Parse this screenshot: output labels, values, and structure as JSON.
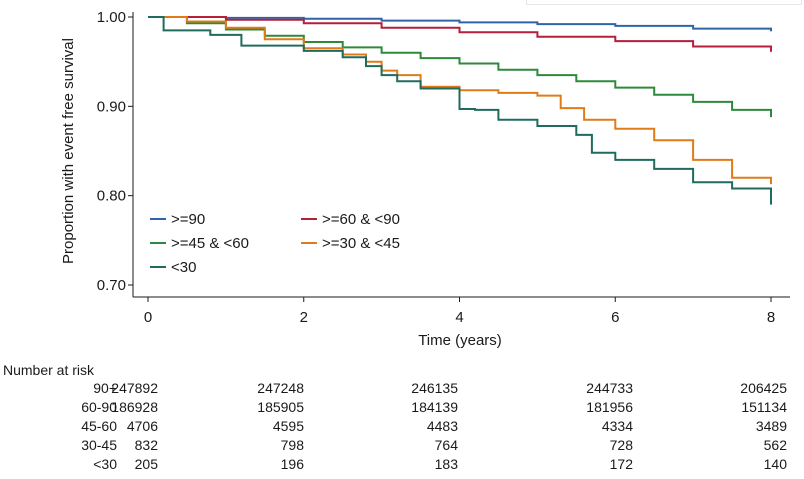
{
  "chart_data": {
    "type": "line",
    "subtype": "kaplan-meier",
    "title": "",
    "xlabel": "Time (years)",
    "ylabel": "Proportion with event free survival",
    "xlim": [
      0,
      8
    ],
    "ylim": [
      0.7,
      1.0
    ],
    "x_ticks": [
      0,
      2,
      4,
      6,
      8
    ],
    "x_tick_labels": [
      "0",
      "2",
      "4",
      "6",
      "8"
    ],
    "y_ticks": [
      0.7,
      0.8,
      0.9,
      1.0
    ],
    "y_tick_labels": [
      "0.70",
      "0.80",
      "0.90",
      "1.00"
    ],
    "grid": false,
    "legend_placement": "bottom-left",
    "series": [
      {
        "name": ">=90",
        "color": "#2f65a7",
        "x": [
          0,
          1,
          2,
          3,
          4,
          5,
          6,
          7,
          8
        ],
        "y": [
          1.0,
          0.999,
          0.998,
          0.996,
          0.994,
          0.992,
          0.99,
          0.987,
          0.984
        ]
      },
      {
        "name": ">=60 & <90",
        "color": "#b51f3a",
        "x": [
          0,
          1,
          2,
          3,
          4,
          5,
          6,
          7,
          8
        ],
        "y": [
          1.0,
          0.997,
          0.993,
          0.988,
          0.983,
          0.978,
          0.973,
          0.967,
          0.961
        ]
      },
      {
        "name": ">=45 & <60",
        "color": "#2c8a3a",
        "x": [
          0,
          0.5,
          1,
          1.5,
          2,
          2.5,
          3,
          3.5,
          4,
          4.5,
          5,
          5.5,
          6,
          6.5,
          7,
          7.5,
          8
        ],
        "y": [
          1.0,
          0.993,
          0.986,
          0.979,
          0.972,
          0.966,
          0.96,
          0.954,
          0.948,
          0.941,
          0.935,
          0.928,
          0.921,
          0.913,
          0.905,
          0.896,
          0.888
        ]
      },
      {
        "name": ">=30 & <45",
        "color": "#e07b1a",
        "x": [
          0,
          0.5,
          1,
          1.5,
          2,
          2.5,
          2.8,
          3,
          3.2,
          3.5,
          4,
          4.5,
          5,
          5.3,
          5.6,
          6,
          6.5,
          7,
          7.5,
          8
        ],
        "y": [
          1.0,
          0.995,
          0.988,
          0.975,
          0.965,
          0.958,
          0.95,
          0.94,
          0.935,
          0.922,
          0.918,
          0.915,
          0.912,
          0.898,
          0.885,
          0.875,
          0.862,
          0.84,
          0.82,
          0.813
        ]
      },
      {
        "name": "<30",
        "color": "#1f6b5e",
        "x": [
          0,
          0.2,
          0.8,
          1.2,
          2,
          2.5,
          2.8,
          3,
          3.2,
          3.5,
          4,
          4.2,
          4.5,
          5,
          5.5,
          5.7,
          6,
          6.5,
          7,
          7.5,
          8
        ],
        "y": [
          1.0,
          0.985,
          0.98,
          0.968,
          0.962,
          0.955,
          0.945,
          0.935,
          0.928,
          0.92,
          0.897,
          0.896,
          0.885,
          0.878,
          0.868,
          0.848,
          0.84,
          0.83,
          0.815,
          0.808,
          0.79
        ]
      }
    ],
    "legend": {
      "entries": [
        ">=90",
        ">=60 & <90",
        ">=45 & <60",
        ">=30 & <45",
        "<30"
      ]
    },
    "risk_table": {
      "title": "Number at risk",
      "times": [
        0,
        2,
        4,
        6,
        8
      ],
      "rows": [
        {
          "label": "90+",
          "values": [
            "247892",
            "247248",
            "246135",
            "244733",
            "206425"
          ]
        },
        {
          "label": "60-90",
          "values": [
            "186928",
            "185905",
            "184139",
            "181956",
            "151134"
          ]
        },
        {
          "label": "45-60",
          "values": [
            "4706",
            "4595",
            "4483",
            "4334",
            "3489"
          ]
        },
        {
          "label": "30-45",
          "values": [
            "832",
            "798",
            "764",
            "728",
            "562"
          ]
        },
        {
          "label": "<30",
          "values": [
            "205",
            "196",
            "183",
            "172",
            "140"
          ]
        }
      ]
    }
  }
}
